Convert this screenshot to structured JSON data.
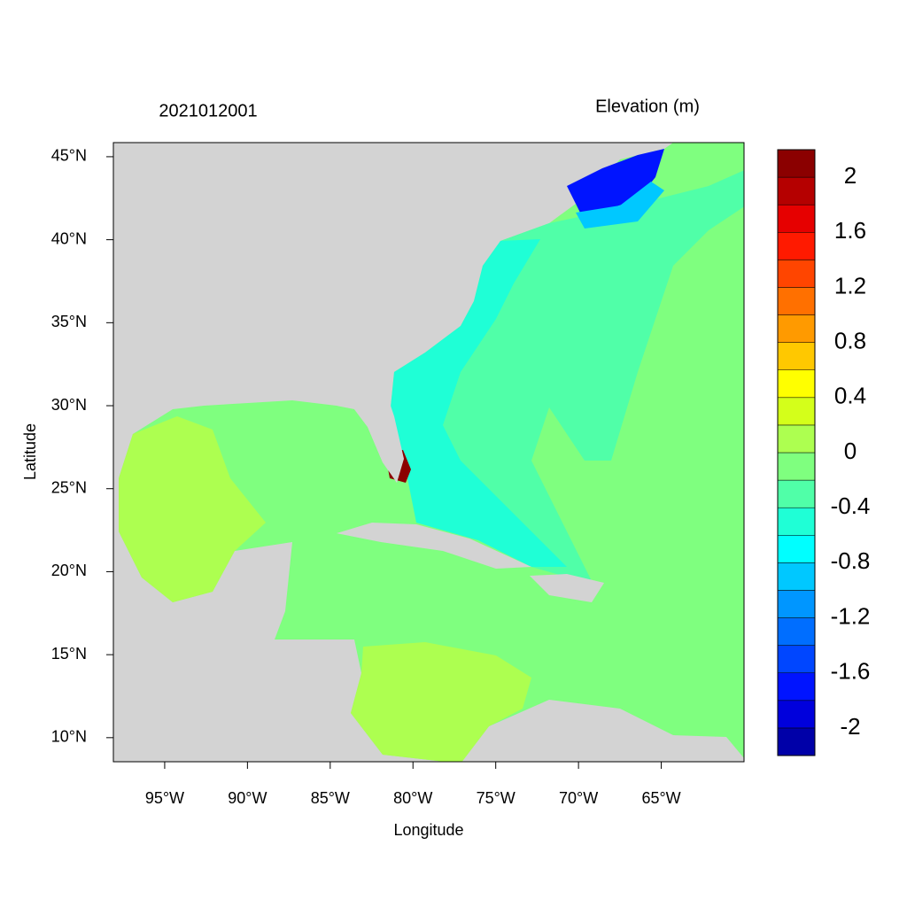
{
  "chart_data": {
    "type": "map",
    "title": "2021012001",
    "subtitle": "Elevation (m)",
    "xlabel": "Longitude",
    "ylabel": "Latitude",
    "xlim": [
      -98.1,
      -60
    ],
    "ylim": [
      8.55,
      45.85
    ],
    "xticks": [
      {
        "value": -95,
        "label": "95°W"
      },
      {
        "value": -90,
        "label": "90°W"
      },
      {
        "value": -85,
        "label": "85°W"
      },
      {
        "value": -80,
        "label": "80°W"
      },
      {
        "value": -75,
        "label": "75°W"
      },
      {
        "value": -70,
        "label": "70°W"
      },
      {
        "value": -65,
        "label": "65°W"
      }
    ],
    "yticks": [
      {
        "value": 10,
        "label": "10°N"
      },
      {
        "value": 15,
        "label": "15°N"
      },
      {
        "value": 20,
        "label": "20°N"
      },
      {
        "value": 25,
        "label": "25°N"
      },
      {
        "value": 30,
        "label": "30°N"
      },
      {
        "value": 35,
        "label": "35°N"
      },
      {
        "value": 40,
        "label": "40°N"
      },
      {
        "value": 45,
        "label": "45°N"
      }
    ],
    "colorbar": {
      "levels": [
        -2.2,
        -2,
        -1.8,
        -1.6,
        -1.4,
        -1.2,
        -1,
        -0.8,
        -0.6,
        -0.4,
        -0.2,
        0,
        0.2,
        0.4,
        0.6,
        0.8,
        1,
        1.2,
        1.4,
        1.6,
        1.8,
        2,
        2.2
      ],
      "colors": [
        "#0000a8",
        "#0000dc",
        "#0014ff",
        "#0046ff",
        "#006eff",
        "#0096ff",
        "#00c8ff",
        "#00ffff",
        "#1fffd6",
        "#50ffa8",
        "#7fff7f",
        "#adff50",
        "#d4ff1a",
        "#ffff00",
        "#ffc800",
        "#ff9a00",
        "#ff7000",
        "#ff4500",
        "#ff1a00",
        "#e60000",
        "#b50000",
        "#8b0000"
      ],
      "ticks": [
        -2,
        -1.6,
        -1.2,
        -0.8,
        -0.4,
        0,
        0.4,
        0.8,
        1.2,
        1.6,
        2
      ]
    }
  }
}
